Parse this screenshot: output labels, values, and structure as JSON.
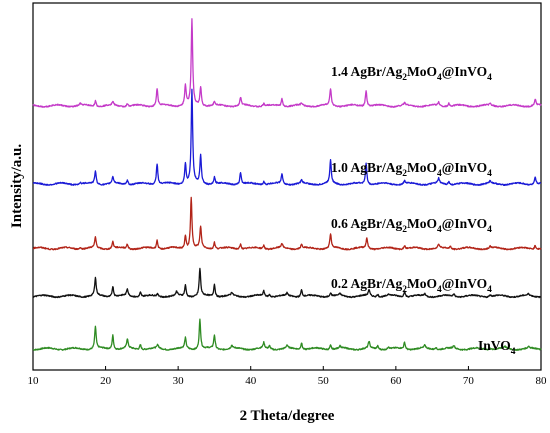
{
  "chart_data": {
    "type": "line",
    "xlabel": "2 Theta/degree",
    "ylabel": "Intensity/a.u.",
    "xlim": [
      10,
      80
    ],
    "x_ticks": [
      "10",
      "20",
      "30",
      "40",
      "50",
      "60",
      "70",
      "80"
    ],
    "grid": false,
    "legend": "none",
    "series": [
      {
        "name": "InVO₄",
        "label_parts": [
          {
            "t": "InVO"
          },
          {
            "t": "4",
            "sub": true
          }
        ],
        "color": "#2e8b22",
        "baseline": 0.1,
        "peaks": [
          [
            18.6,
            0.36
          ],
          [
            21.0,
            0.23
          ],
          [
            23.0,
            0.15
          ],
          [
            24.8,
            0.08
          ],
          [
            27.2,
            0.06
          ],
          [
            31.0,
            0.17
          ],
          [
            33.0,
            0.48
          ],
          [
            35.0,
            0.22
          ],
          [
            37.4,
            0.05
          ],
          [
            41.8,
            0.09
          ],
          [
            42.6,
            0.05
          ],
          [
            45.0,
            0.05
          ],
          [
            47.0,
            0.11
          ],
          [
            51.0,
            0.07
          ],
          [
            52.3,
            0.04
          ],
          [
            56.3,
            0.11
          ],
          [
            57.5,
            0.05
          ],
          [
            59.0,
            0.04
          ],
          [
            61.2,
            0.11
          ],
          [
            64.0,
            0.05
          ],
          [
            65.5,
            0.04
          ],
          [
            68.0,
            0.05
          ],
          [
            73.0,
            0.03
          ],
          [
            75.0,
            0.03
          ],
          [
            78.3,
            0.03
          ]
        ]
      },
      {
        "name": "0.2 AgBr/Ag₂MoO₄@InVO₄",
        "label_parts": [
          {
            "t": "0.2 AgBr/Ag"
          },
          {
            "t": "2",
            "sub": true
          },
          {
            "t": "MoO"
          },
          {
            "t": "4",
            "sub": true
          },
          {
            "t": "@InVO"
          },
          {
            "t": "4",
            "sub": true
          }
        ],
        "color": "#111111",
        "baseline": 0.95,
        "peaks": [
          [
            18.6,
            0.29
          ],
          [
            21.0,
            0.17
          ],
          [
            23.0,
            0.11
          ],
          [
            24.8,
            0.07
          ],
          [
            27.2,
            0.04
          ],
          [
            29.8,
            0.07
          ],
          [
            31.0,
            0.18
          ],
          [
            33.0,
            0.44
          ],
          [
            35.0,
            0.2
          ],
          [
            37.4,
            0.05
          ],
          [
            41.8,
            0.08
          ],
          [
            42.6,
            0.04
          ],
          [
            45.0,
            0.04
          ],
          [
            47.0,
            0.11
          ],
          [
            51.0,
            0.06
          ],
          [
            52.3,
            0.03
          ],
          [
            56.3,
            0.1
          ],
          [
            57.5,
            0.04
          ],
          [
            59.0,
            0.03
          ],
          [
            61.2,
            0.09
          ],
          [
            64.0,
            0.04
          ],
          [
            68.0,
            0.04
          ],
          [
            73.0,
            0.03
          ],
          [
            78.3,
            0.03
          ]
        ]
      },
      {
        "name": "0.6 AgBr/Ag₂MoO₄@InVO₄",
        "label_parts": [
          {
            "t": "0.6 AgBr/Ag"
          },
          {
            "t": "2",
            "sub": true
          },
          {
            "t": "MoO"
          },
          {
            "t": "4",
            "sub": true
          },
          {
            "t": "@InVO"
          },
          {
            "t": "4",
            "sub": true
          }
        ],
        "color": "#b22418",
        "baseline": 1.72,
        "peaks": [
          [
            16.5,
            0.03
          ],
          [
            18.6,
            0.17
          ],
          [
            21.0,
            0.11
          ],
          [
            23.0,
            0.07
          ],
          [
            27.1,
            0.14
          ],
          [
            31.0,
            0.21
          ],
          [
            31.8,
            0.82
          ],
          [
            33.1,
            0.34
          ],
          [
            35.0,
            0.11
          ],
          [
            38.6,
            0.08
          ],
          [
            41.8,
            0.06
          ],
          [
            44.3,
            0.07
          ],
          [
            47.0,
            0.06
          ],
          [
            51.0,
            0.23
          ],
          [
            56.0,
            0.17
          ],
          [
            61.2,
            0.05
          ],
          [
            65.9,
            0.06
          ],
          [
            67.5,
            0.04
          ],
          [
            73.0,
            0.03
          ],
          [
            79.2,
            0.06
          ]
        ]
      },
      {
        "name": "1.0 AgBr/Ag₂MoO₄@InVO₄",
        "label_parts": [
          {
            "t": "1.0 AgBr/Ag"
          },
          {
            "t": "2",
            "sub": true
          },
          {
            "t": "MoO"
          },
          {
            "t": "4",
            "sub": true
          },
          {
            "t": "@InVO"
          },
          {
            "t": "4",
            "sub": true
          }
        ],
        "color": "#1a1ad6",
        "baseline": 2.76,
        "peaks": [
          [
            16.5,
            0.03
          ],
          [
            18.6,
            0.21
          ],
          [
            21.0,
            0.11
          ],
          [
            23.0,
            0.07
          ],
          [
            27.1,
            0.34
          ],
          [
            31.0,
            0.33
          ],
          [
            31.9,
            1.5
          ],
          [
            33.1,
            0.45
          ],
          [
            35.0,
            0.11
          ],
          [
            38.6,
            0.19
          ],
          [
            41.8,
            0.05
          ],
          [
            44.3,
            0.16
          ],
          [
            47.0,
            0.05
          ],
          [
            51.0,
            0.38
          ],
          [
            55.9,
            0.34
          ],
          [
            61.2,
            0.05
          ],
          [
            65.9,
            0.08
          ],
          [
            67.3,
            0.05
          ],
          [
            73.0,
            0.04
          ],
          [
            79.2,
            0.11
          ]
        ]
      },
      {
        "name": "1.4 AgBr/Ag₂MoO₄@InVO₄",
        "label_parts": [
          {
            "t": "1.4 AgBr/Ag"
          },
          {
            "t": "2",
            "sub": true
          },
          {
            "t": "MoO"
          },
          {
            "t": "4",
            "sub": true
          },
          {
            "t": "@InVO"
          },
          {
            "t": "4",
            "sub": true
          }
        ],
        "color": "#c43ac8",
        "baseline": 4.02,
        "peaks": [
          [
            16.5,
            0.03
          ],
          [
            18.6,
            0.09
          ],
          [
            21.0,
            0.06
          ],
          [
            23.0,
            0.04
          ],
          [
            27.1,
            0.28
          ],
          [
            31.0,
            0.33
          ],
          [
            31.9,
            1.38
          ],
          [
            33.1,
            0.31
          ],
          [
            35.0,
            0.06
          ],
          [
            38.6,
            0.13
          ],
          [
            41.8,
            0.04
          ],
          [
            44.3,
            0.12
          ],
          [
            47.0,
            0.03
          ],
          [
            51.0,
            0.27
          ],
          [
            55.9,
            0.26
          ],
          [
            61.2,
            0.04
          ],
          [
            65.9,
            0.06
          ],
          [
            67.3,
            0.05
          ],
          [
            73.0,
            0.03
          ],
          [
            79.2,
            0.1
          ]
        ]
      }
    ]
  }
}
